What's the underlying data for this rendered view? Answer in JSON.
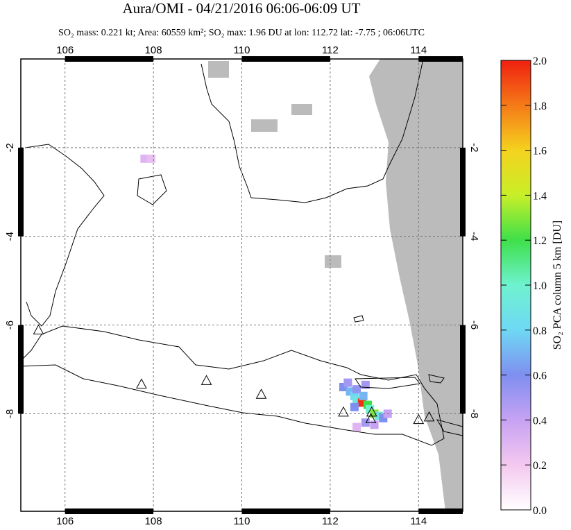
{
  "chart_data": {
    "type": "map",
    "title": "Aura/OMI - 04/21/2016 06:06-06:09 UT",
    "subtitle": "SO₂ mass: 0.221 kt; Area: 60559 km²; SO₂ max: 1.96 DU at lon: 112.72 lat: -7.75 ; 06:06UTC",
    "xlim": [
      105,
      115
    ],
    "ylim": [
      -10.2,
      0
    ],
    "xticks": [
      106,
      108,
      110,
      112,
      114
    ],
    "yticks": [
      -2,
      -4,
      -6,
      -8
    ],
    "grid": true,
    "volcanoes": {
      "x": [
        105.4,
        107.73,
        109.2,
        110.44,
        112.3,
        112.94,
        112.92,
        114.0,
        114.24
      ],
      "y": [
        -6.11,
        -7.33,
        -7.25,
        -7.56,
        -7.96,
        -7.96,
        -8.11,
        -8.13,
        -8.07
      ]
    },
    "so2": {
      "x": [
        112.3,
        112.45,
        112.55,
        112.6,
        112.72,
        112.85,
        112.9,
        113.0,
        113.1,
        113.2,
        112.8,
        113.0,
        112.6,
        112.4,
        112.6,
        112.75,
        112.55,
        113.3,
        112.8,
        107.8,
        107.95
      ],
      "y": [
        -7.4,
        -7.5,
        -7.6,
        -7.7,
        -7.75,
        -7.8,
        -7.9,
        -8.0,
        -8.05,
        -8.1,
        -8.2,
        -8.25,
        -8.3,
        -7.3,
        -7.45,
        -7.6,
        -7.85,
        -8.0,
        -7.35,
        -2.25,
        -2.25
      ],
      "values": [
        0.6,
        0.7,
        0.8,
        0.9,
        1.96,
        1.2,
        1.0,
        1.3,
        0.9,
        0.6,
        0.5,
        0.4,
        0.3,
        0.5,
        0.55,
        0.7,
        0.6,
        0.4,
        0.5,
        0.3,
        0.25
      ]
    },
    "colorbar": {
      "label": "SO₂ PCA column 5 km [DU]",
      "clim": [
        0,
        2
      ],
      "ticks": [
        {
          "value": 0,
          "label": "0.0"
        },
        {
          "value": 0.2,
          "label": "0.2"
        },
        {
          "value": 0.4,
          "label": "0.4"
        },
        {
          "value": 0.6,
          "label": "0.6"
        },
        {
          "value": 0.8,
          "label": "0.8"
        },
        {
          "value": 1.0,
          "label": "1.0"
        },
        {
          "value": 1.2,
          "label": "1.2"
        },
        {
          "value": 1.4,
          "label": "1.4"
        },
        {
          "value": 1.6,
          "label": "1.6"
        },
        {
          "value": 1.8,
          "label": "1.8"
        },
        {
          "value": 2.0,
          "label": "2.0"
        }
      ],
      "colors": [
        "#ffffff",
        "#f4c8ef",
        "#c7a2f3",
        "#7f8ff0",
        "#6fd8f4",
        "#6ff2d0",
        "#3ee04a",
        "#c8ef28",
        "#f5d21e",
        "#f57a18",
        "#f02010"
      ]
    }
  }
}
